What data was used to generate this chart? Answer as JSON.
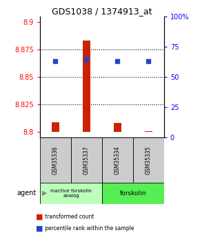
{
  "title": "GDS1038 / 1374913_at",
  "samples": [
    "GSM35336",
    "GSM35337",
    "GSM35334",
    "GSM35335"
  ],
  "red_values": [
    8.809,
    8.883,
    8.808,
    8.801
  ],
  "blue_values_pct": [
    63,
    65,
    63,
    63
  ],
  "ylim_left": [
    8.795,
    8.905
  ],
  "ylim_right": [
    0,
    100
  ],
  "yticks_left": [
    8.8,
    8.825,
    8.85,
    8.875,
    8.9
  ],
  "yticks_right": [
    0,
    25,
    50,
    75,
    100
  ],
  "grid_yticks": [
    8.825,
    8.85,
    8.875
  ],
  "bar_base": 8.8,
  "agents": [
    "inactive forskolin\nanalog",
    "forskolin"
  ],
  "agent_colors": [
    "#bbffbb",
    "#55ee55"
  ],
  "sample_bg_color": "#cccccc",
  "legend_red": "transformed count",
  "legend_blue": "percentile rank within the sample",
  "bar_width": 0.25
}
